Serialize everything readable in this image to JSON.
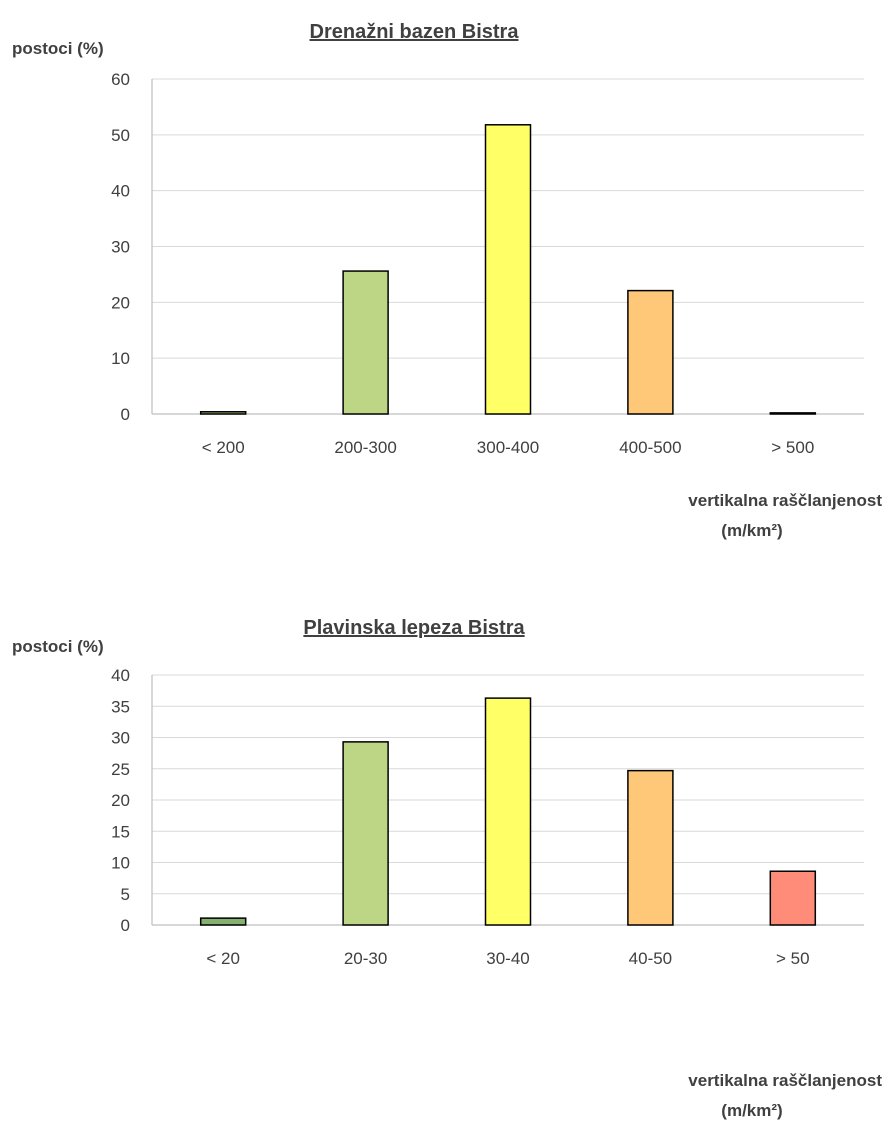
{
  "chart_data": [
    {
      "type": "bar",
      "title": "Drenažni bazen Bistra",
      "ylabel": "postoci (%)",
      "xlabel_line1": "vertikalna raščlanjenost",
      "xlabel_line2": "(m/km²)",
      "categories": [
        "< 200",
        "200-300",
        "300-400",
        "400-500",
        "> 500"
      ],
      "values": [
        0.4,
        25.6,
        51.8,
        22.1,
        0.2
      ],
      "colors": [
        "#9bc67a",
        "#bdd685",
        "#ffff66",
        "#ffc878",
        "#ff9080"
      ],
      "ylim": [
        0,
        60
      ],
      "yticks": [
        "0",
        "10",
        "20",
        "30",
        "40",
        "50",
        "60"
      ],
      "grid": true
    },
    {
      "type": "bar",
      "title": "Plavinska lepeza Bistra",
      "ylabel": "postoci (%)",
      "xlabel_line1": "vertikalna raščlanjenost",
      "xlabel_line2": "(m/km²)",
      "categories": [
        "< 20",
        "20-30",
        "30-40",
        "40-50",
        "> 50"
      ],
      "values": [
        1.1,
        29.3,
        36.3,
        24.7,
        8.6
      ],
      "colors": [
        "#85b06f",
        "#bdd685",
        "#ffff66",
        "#ffc878",
        "#ff8c78"
      ],
      "ylim": [
        0,
        40
      ],
      "yticks": [
        "0",
        "5",
        "10",
        "15",
        "20",
        "25",
        "30",
        "35",
        "40"
      ],
      "grid": true
    }
  ]
}
